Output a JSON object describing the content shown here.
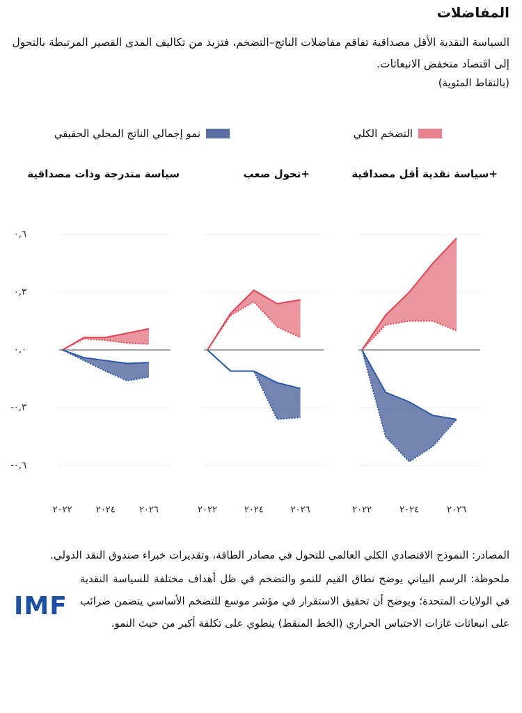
{
  "header": {
    "title": "المفاضلات",
    "subtitle": "السياسة النقدية الأقل مصداقية تفاقم مفاضلات الناتج–التضخم، فتزيد من تكاليف المدى القصير المرتبطة بالتحول إلى اقتصاد منخفض الانبعاثات.",
    "units": "(بالنقاط المئوية)"
  },
  "chart_data": [
    {
      "type": "band",
      "title": "سياسة متدرجة وذات مصداقية",
      "x": [
        2022,
        2023,
        2024,
        2025,
        2026
      ],
      "xlim": [
        2021.85,
        2027
      ],
      "xticks": [
        {
          "value": 2022,
          "label": "٢٠٢٢"
        },
        {
          "value": 2024,
          "label": "٢٠٢٤"
        },
        {
          "value": 2026,
          "label": "٢٠٢٦"
        }
      ],
      "ylim": [
        -0.7,
        0.65
      ],
      "yticks": [
        {
          "value": -0.6,
          "label": "-٠,٦"
        },
        {
          "value": -0.3,
          "label": "-٠,٣"
        },
        {
          "value": 0,
          "label": "٠,٠"
        },
        {
          "value": 0.3,
          "label": "٠,٣"
        },
        {
          "value": 0.6,
          "label": "٠,٦"
        }
      ],
      "series": [
        {
          "name": "التضخم الكلي",
          "color": "#e04455",
          "fill": "#e8828d",
          "values": [
            0,
            0.065,
            0.065,
            0.087,
            0.11
          ],
          "values_core": [
            0,
            0.058,
            0.05,
            0.036,
            0.03
          ]
        },
        {
          "name": "نمو إجمالي الناتج المحلي الحقيقي",
          "color": "#2d5aa8",
          "fill": "#5a6ea3",
          "values": [
            0,
            -0.04,
            -0.055,
            -0.07,
            -0.065
          ],
          "values_core": [
            0,
            -0.055,
            -0.11,
            -0.16,
            -0.14
          ]
        }
      ]
    },
    {
      "type": "band",
      "title": "+تحول صعب",
      "x": [
        2022,
        2023,
        2024,
        2025,
        2026
      ],
      "xlim": [
        2021.85,
        2027
      ],
      "xticks": [
        {
          "value": 2022,
          "label": "٢٠٢٢"
        },
        {
          "value": 2024,
          "label": "٢٠٢٤"
        },
        {
          "value": 2026,
          "label": "٢٠٢٦"
        }
      ],
      "ylim": [
        -0.7,
        0.65
      ],
      "series": [
        {
          "color": "#e04455",
          "fill": "#e8828d",
          "values": [
            0,
            0.19,
            0.31,
            0.24,
            0.26
          ],
          "values_core": [
            0,
            0.18,
            0.25,
            0.12,
            0.065
          ]
        },
        {
          "color": "#2d5aa8",
          "fill": "#5a6ea3",
          "values": [
            0,
            -0.11,
            -0.11,
            -0.17,
            -0.2
          ],
          "values_core": [
            0,
            -0.11,
            -0.11,
            -0.36,
            -0.35
          ]
        }
      ]
    },
    {
      "type": "band",
      "title": "+سياسة نقدية أقل مصداقية",
      "x": [
        2022,
        2023,
        2024,
        2025,
        2026
      ],
      "xlim": [
        2021.85,
        2027
      ],
      "xticks": [
        {
          "value": 2022,
          "label": "٢٠٢٢"
        },
        {
          "value": 2024,
          "label": "٢٠٢٤"
        },
        {
          "value": 2026,
          "label": "٢٠٢٦"
        }
      ],
      "ylim": [
        -0.7,
        0.65
      ],
      "series": [
        {
          "color": "#e04455",
          "fill": "#e8828d",
          "values": [
            0,
            0.18,
            0.3,
            0.45,
            0.58
          ],
          "values_core": [
            0,
            0.13,
            0.15,
            0.15,
            0.1
          ]
        },
        {
          "color": "#2d5aa8",
          "fill": "#5a6ea3",
          "values": [
            0,
            -0.22,
            -0.27,
            -0.34,
            -0.36
          ],
          "values_core": [
            0,
            -0.45,
            -0.58,
            -0.5,
            -0.36
          ]
        }
      ]
    }
  ],
  "footer": {
    "source": "المصادر: النموذج الاقتصادي الكلي العالمي للتحول في مصادر الطاقة، وتقديرات خبراء صندوق النقد الدولي.",
    "note": "ملحوظة: الرسم البياني يوضح نطاق القيم للنمو والتضخم في ظل أهداف مختلفة للسياسة النقدية في الولايات المتحدة؛ ويوضح أن تحقيق الاستقرار في مؤشر موسع للتضخم الأساسي يتضمن ضرائب على انبعاثات غازات الاحتباس الحراري (الخط المنقط) ينطوي على تكلفة أكبر من حيث النمو.",
    "logo": "IMF"
  }
}
